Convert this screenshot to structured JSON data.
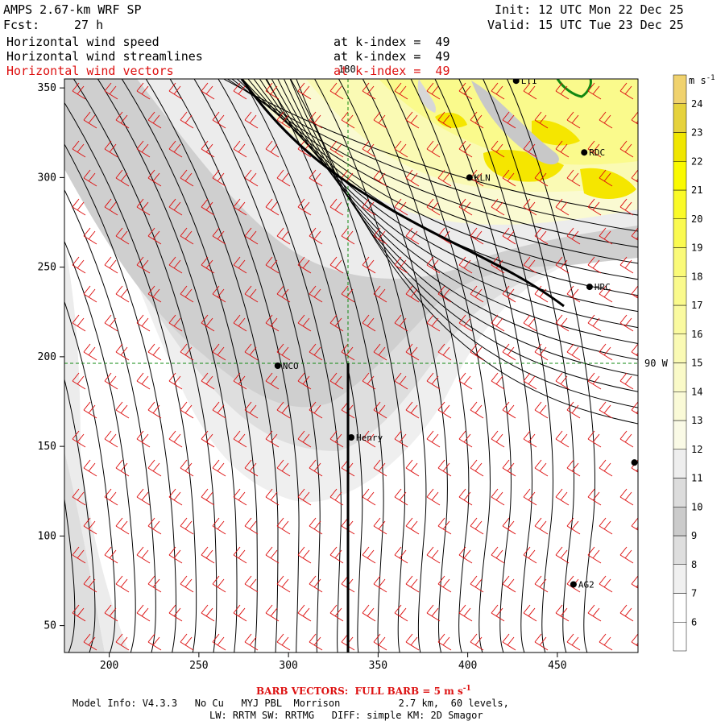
{
  "header": {
    "model": "AMPS 2.67-km WRF SP",
    "init": "Init: 12 UTC Mon 22 Dec 25",
    "fcst_label": "Fcst:",
    "fcst_value": "27 h",
    "valid": "Valid: 15 UTC Tue 23 Dec 25"
  },
  "fields": [
    {
      "name": "Horizontal wind speed",
      "level": "at k-index =  49",
      "color": "#000000"
    },
    {
      "name": "Horizontal wind streamlines",
      "level": "at k-index =  49",
      "color": "#000000"
    },
    {
      "name": "Horizontal wind vectors",
      "level": "at k-index =  49",
      "color": "#dd1111"
    }
  ],
  "chart_data": {
    "type": "heatmap",
    "x_ticks": [
      200,
      250,
      300,
      350,
      400,
      450
    ],
    "y_ticks": [
      50,
      100,
      150,
      200,
      250,
      300,
      350
    ],
    "xlim": [
      175,
      495
    ],
    "ylim": [
      35,
      355
    ],
    "grid_labels": {
      "meridian": "180",
      "parallel": "90 W"
    },
    "stations": [
      {
        "name": "LT1",
        "x": 427,
        "y": 354
      },
      {
        "name": "RDC",
        "x": 465,
        "y": 314
      },
      {
        "name": "KLN",
        "x": 401,
        "y": 300
      },
      {
        "name": "HRC",
        "x": 468,
        "y": 239
      },
      {
        "name": "NCO",
        "x": 294,
        "y": 195
      },
      {
        "name": "Henry",
        "x": 335,
        "y": 155
      },
      {
        "name": "AG2",
        "x": 459,
        "y": 73
      },
      {
        "name": "",
        "x": 493,
        "y": 141
      }
    ],
    "colorbar": {
      "units": "m s",
      "units_exp": "-1",
      "levels": [
        6,
        7,
        8,
        9,
        10,
        11,
        12,
        13,
        14,
        15,
        16,
        17,
        18,
        19,
        20,
        21,
        22,
        23,
        24
      ],
      "colors": [
        "#ffffff",
        "#f0f0f0",
        "#dedede",
        "#cbcbcb",
        "#dcdcdc",
        "#eeeeee",
        "#fafae6",
        "#fafad7",
        "#fafac8",
        "#fafab4",
        "#fafaa0",
        "#fafa8c",
        "#fafa78",
        "#fafa50",
        "#fafa28",
        "#fafa00",
        "#f0e600",
        "#e6d23c",
        "#f0d26e"
      ]
    },
    "barb_note": "FULL BARB = 5 m s"
  },
  "footer": {
    "barb_title": "BARB VECTORS:  FULL BARB = 5 m s",
    "barb_exp": "-1",
    "model_info": "Model Info: V4.3.3   No Cu   MYJ PBL  Morrison          2.7 km,  60 levels,",
    "physics": "LW: RRTM SW: RRTMG   DIFF: simple KM: 2D Smagor"
  }
}
